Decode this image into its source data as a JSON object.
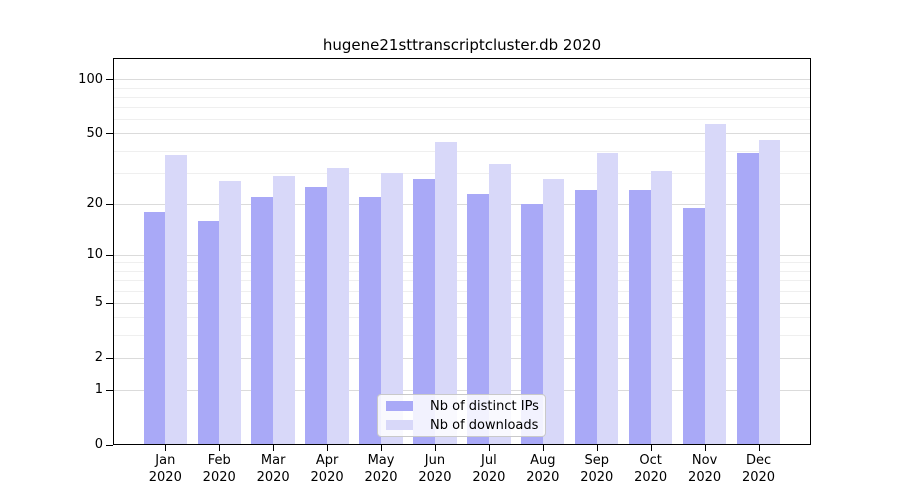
{
  "title": "hugene21sttranscriptcluster.db 2020",
  "chart_data": {
    "type": "bar",
    "title": "hugene21sttranscriptcluster.db 2020",
    "categories": [
      "Jan",
      "Feb",
      "Mar",
      "Apr",
      "May",
      "Jun",
      "Jul",
      "Aug",
      "Sep",
      "Oct",
      "Nov",
      "Dec"
    ],
    "category_year": "2020",
    "series": [
      {
        "name": "Nb of distinct IPs",
        "color": "#a9a9f7",
        "values": [
          18,
          16,
          22,
          25,
          22,
          28,
          23,
          20,
          24,
          24,
          19,
          39
        ]
      },
      {
        "name": "Nb of downloads",
        "color": "#d8d8f9",
        "values": [
          38,
          27,
          29,
          32,
          30,
          45,
          34,
          28,
          39,
          31,
          57,
          46
        ]
      }
    ],
    "y_axis": {
      "scale": "log1p",
      "ticks": [
        0,
        1,
        2,
        5,
        10,
        20,
        50,
        100
      ],
      "gridline_values": [
        1,
        2,
        3,
        4,
        5,
        6,
        7,
        8,
        9,
        10,
        20,
        30,
        40,
        50,
        60,
        70,
        80,
        90,
        100
      ],
      "max": 132
    },
    "x_axis": {
      "label_line2": "2020"
    },
    "legend": {
      "position": "lower-center"
    },
    "grid": true,
    "colors": {
      "bar_dark": "#a9a9f7",
      "bar_light": "#d8d8f9",
      "grid_major": "#dbdbdb",
      "grid_minor": "#efefef",
      "spine": "#000000",
      "text": "#000000",
      "background": "#ffffff"
    }
  }
}
